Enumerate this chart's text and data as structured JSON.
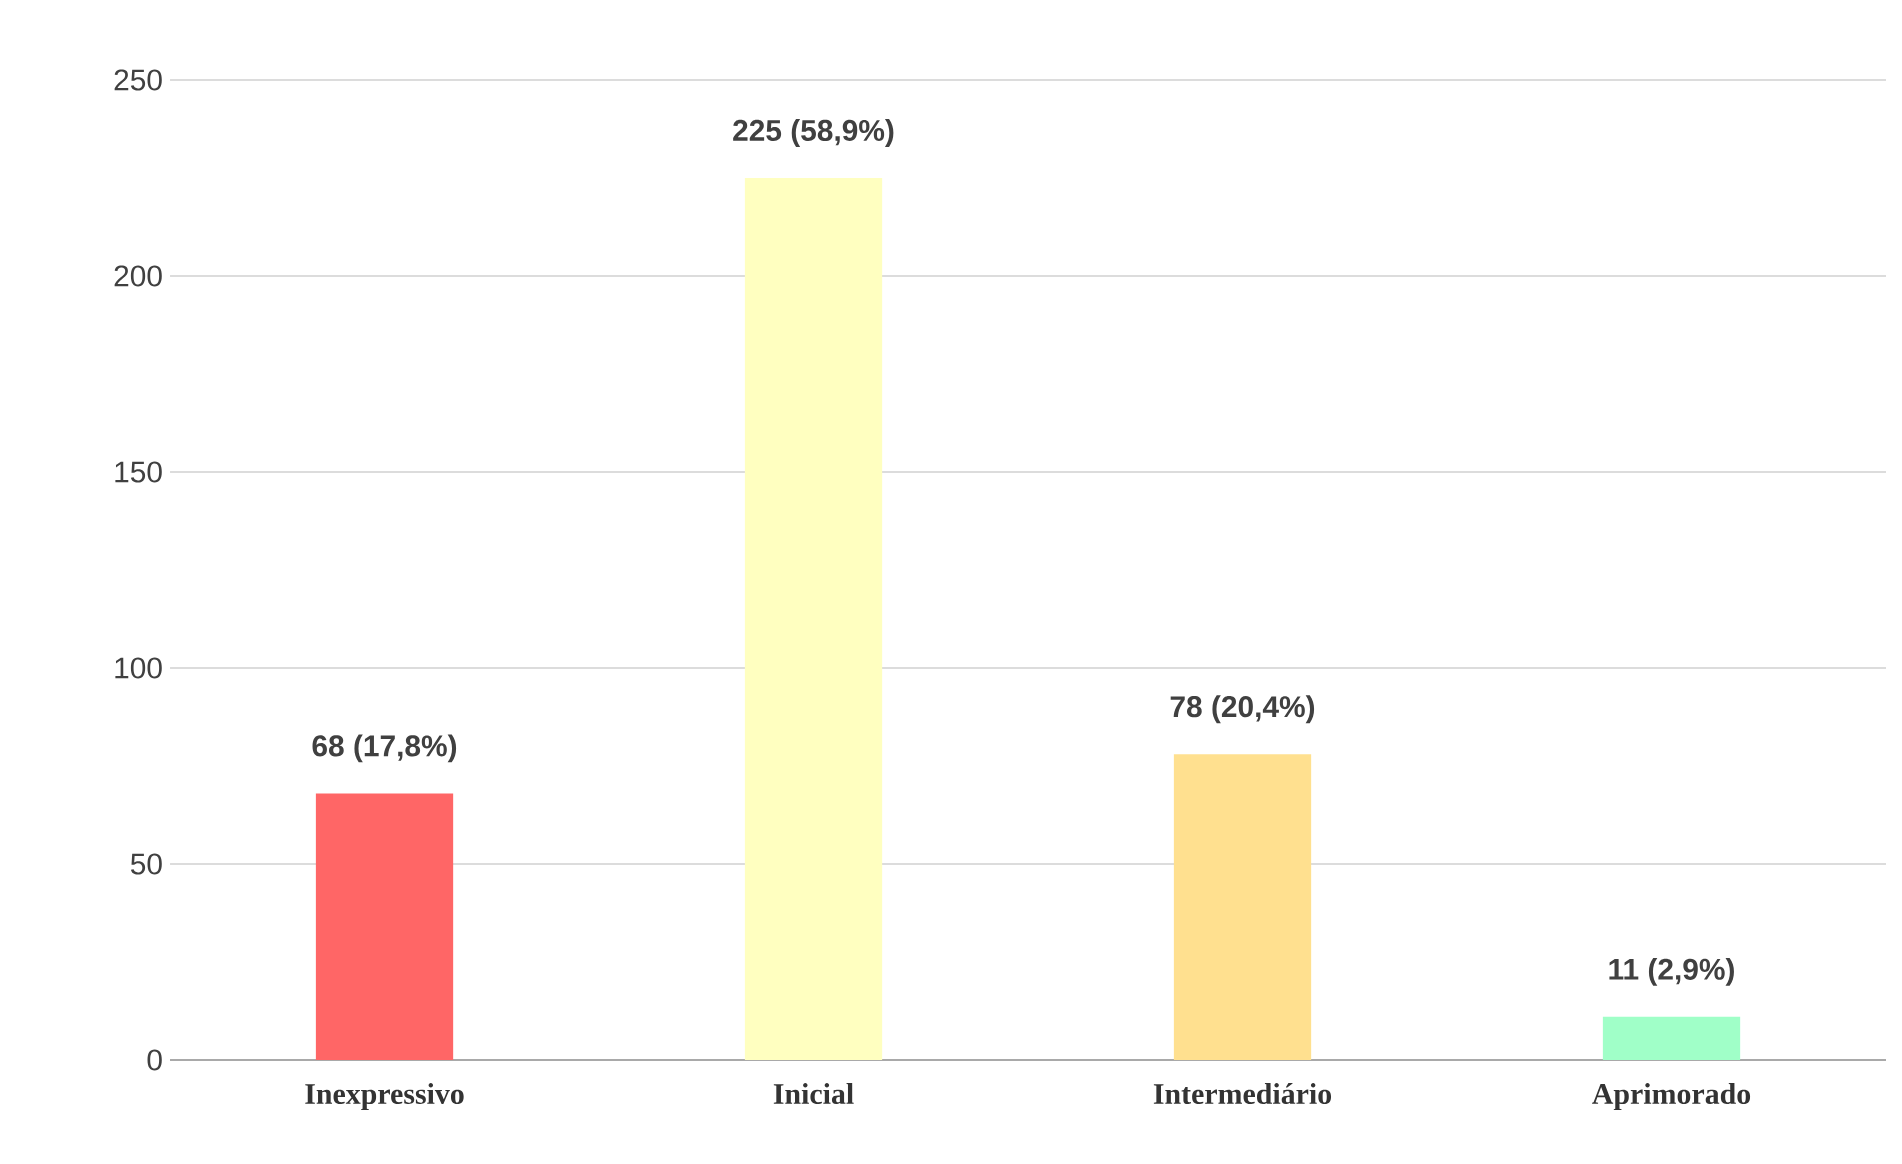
{
  "chart_data": {
    "type": "bar",
    "categories": [
      "Inexpressivo",
      "Inicial",
      "Intermediário",
      "Aprimorado"
    ],
    "values": [
      68,
      225,
      78,
      11
    ],
    "colors": [
      "#ff6666",
      "#ffffc0",
      "#ffe08f",
      "#a0ffc8"
    ],
    "value_labels": [
      "68 (17,8%)",
      "225 (58,9%)",
      "78 (20,4%)",
      "11 (2,9%)"
    ],
    "ylim": [
      0,
      250
    ],
    "yticks": [
      0,
      50,
      100,
      150,
      200,
      250
    ],
    "grid": "y"
  }
}
